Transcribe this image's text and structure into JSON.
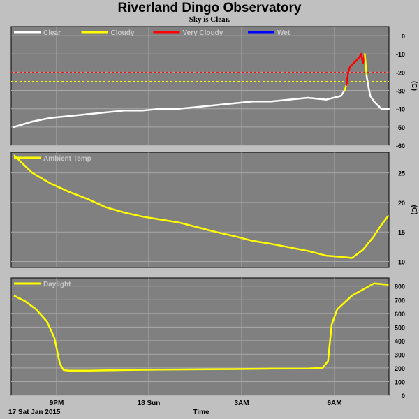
{
  "header": {
    "title": "Riverland Dingo Observatory",
    "subtitle": "Sky is Clear."
  },
  "footer": {
    "date_label": "17 Sat Jan 2015",
    "time_label": "Time"
  },
  "x_ticks": [
    "9PM",
    "18 Sun",
    "3AM",
    "6AM"
  ],
  "colors": {
    "background": "#c0c0c0",
    "plot_bg": "#808080",
    "grid": "#a8a8a8",
    "series_clear": "#ffffff",
    "series_cloudy": "#ffff00",
    "series_very_cloudy": "#ff0000",
    "series_wet": "#0000ff",
    "threshold_cloudy": "#ffff00",
    "threshold_very_cloudy": "#ff0000"
  },
  "chart_data": [
    {
      "type": "line",
      "ylabel": "(C)",
      "ylim": [
        -60,
        5
      ],
      "yticks": [
        0,
        -10,
        -20,
        -30,
        -40,
        -50,
        -60
      ],
      "legend": [
        "Clear",
        "Cloudy",
        "Very Cloudy",
        "Wet"
      ],
      "thresholds": [
        {
          "name": "Very Cloudy",
          "value": -20
        },
        {
          "name": "Cloudy",
          "value": -25
        }
      ],
      "x_hours": [
        0,
        0.5,
        1,
        1.5,
        2,
        2.5,
        3,
        3.5,
        4,
        4.5,
        5,
        5.5,
        6,
        6.5,
        7,
        7.5,
        8,
        8.5,
        8.9,
        9.0,
        9.05,
        9.1,
        9.15,
        9.2,
        9.3,
        9.4,
        9.45,
        9.5,
        9.55,
        9.6,
        9.65,
        9.7,
        9.8,
        9.9,
        10.0,
        10.2
      ],
      "values": [
        -50,
        -47,
        -45,
        -44,
        -43,
        -42,
        -41,
        -41,
        -40,
        -40,
        -39,
        -38,
        -37,
        -36,
        -36,
        -35,
        -34,
        -35,
        -33,
        -30,
        -27,
        -20,
        -17,
        -16,
        -14,
        -12,
        -10,
        -15,
        -10,
        -22,
        -28,
        -33,
        -36,
        -38,
        -40,
        -40
      ],
      "states": [
        "Clear",
        "Clear",
        "Clear",
        "Clear",
        "Clear",
        "Clear",
        "Clear",
        "Clear",
        "Clear",
        "Clear",
        "Clear",
        "Clear",
        "Clear",
        "Clear",
        "Clear",
        "Clear",
        "Clear",
        "Clear",
        "Clear",
        "Clear",
        "Cloudy",
        "Very Cloudy",
        "Very Cloudy",
        "Very Cloudy",
        "Very Cloudy",
        "Very Cloudy",
        "Very Cloudy",
        "Very Cloudy",
        "Very Cloudy",
        "Cloudy",
        "Clear",
        "Clear",
        "Clear",
        "Clear",
        "Clear",
        "Clear"
      ]
    },
    {
      "type": "line",
      "ylabel": "(C)",
      "ylim": [
        9,
        28.5
      ],
      "yticks": [
        25,
        20,
        15,
        10
      ],
      "series": [
        {
          "name": "Ambient Temp",
          "x_hours": [
            0,
            0.5,
            1,
            1.5,
            2,
            2.5,
            3,
            3.5,
            4,
            4.5,
            5,
            5.5,
            6,
            6.5,
            7,
            7.5,
            8,
            8.5,
            8.9,
            9.2,
            9.5,
            9.8,
            10.0,
            10.2
          ],
          "values": [
            28,
            25,
            23.2,
            21.8,
            20.6,
            19.2,
            18.3,
            17.6,
            17.1,
            16.6,
            15.8,
            15.0,
            14.3,
            13.5,
            13.0,
            12.4,
            11.8,
            11.0,
            10.8,
            10.6,
            12.0,
            14.3,
            16.2,
            17.8
          ]
        }
      ]
    },
    {
      "type": "line",
      "ylabel": "",
      "ylim": [
        0,
        860
      ],
      "yticks": [
        800,
        700,
        600,
        500,
        400,
        300,
        200,
        100,
        0
      ],
      "series": [
        {
          "name": "Daylight",
          "x_hours": [
            0,
            0.3,
            0.6,
            0.9,
            1.1,
            1.25,
            1.35,
            1.5,
            2,
            3,
            4,
            5,
            6,
            7,
            8,
            8.4,
            8.55,
            8.65,
            8.8,
            9.0,
            9.2,
            9.4,
            9.6,
            9.8,
            10.0,
            10.2
          ],
          "values": [
            730,
            690,
            630,
            540,
            420,
            230,
            185,
            180,
            180,
            185,
            188,
            190,
            192,
            195,
            196,
            200,
            250,
            520,
            630,
            680,
            730,
            760,
            790,
            820,
            815,
            810
          ]
        }
      ]
    }
  ]
}
